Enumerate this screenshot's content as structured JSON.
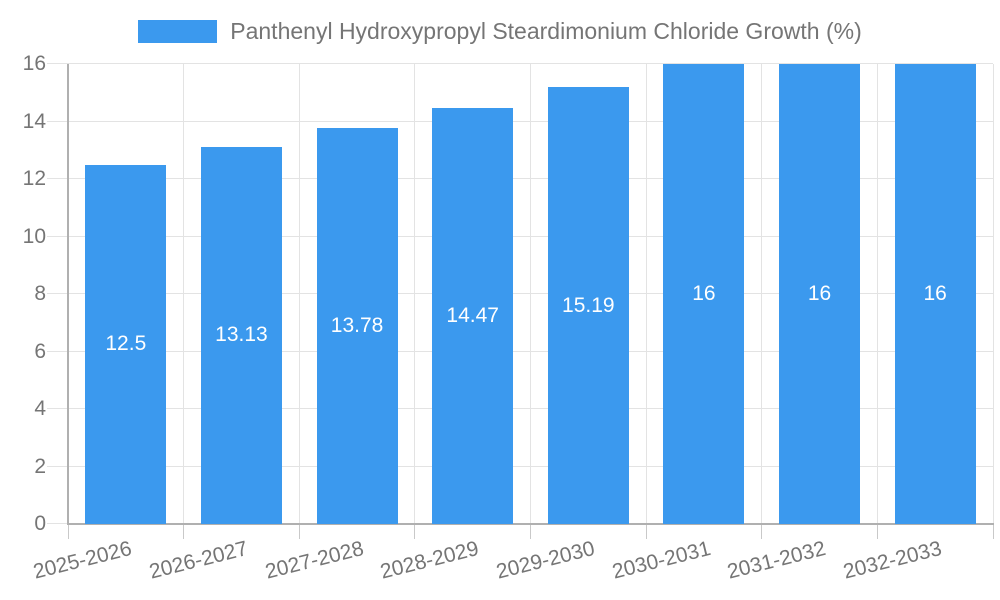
{
  "chart_data": {
    "type": "bar",
    "title": "Panthenyl Hydroxypropyl Steardimonium Chloride Growth (%)",
    "categories": [
      "2025-2026",
      "2026-2027",
      "2027-2028",
      "2028-2029",
      "2029-2030",
      "2030-2031",
      "2031-2032",
      "2032-2033"
    ],
    "values": [
      12.5,
      13.13,
      13.78,
      14.47,
      15.19,
      16,
      16,
      16
    ],
    "bar_labels": [
      "12.5",
      "13.13",
      "13.78",
      "14.47",
      "15.19",
      "16",
      "16",
      "16"
    ],
    "xlabel": "",
    "ylabel": "",
    "ylim": [
      0,
      16
    ],
    "yticks": [
      0,
      2,
      4,
      6,
      8,
      10,
      12,
      14,
      16
    ],
    "ytick_labels": [
      "0",
      "2",
      "4",
      "6",
      "8",
      "10",
      "12",
      "14",
      "16"
    ],
    "grid": true,
    "legend_position": "top",
    "bar_label_position": "middle-of-bar",
    "x_label_rotation_deg": -14,
    "colors": {
      "bar": "#3b99ee",
      "grid": "#e3e3e3",
      "axis": "#b0b0b0",
      "tick": "#c9c9c9",
      "text": "#757575",
      "bar_label": "#ffffff",
      "background": "#ffffff"
    }
  }
}
